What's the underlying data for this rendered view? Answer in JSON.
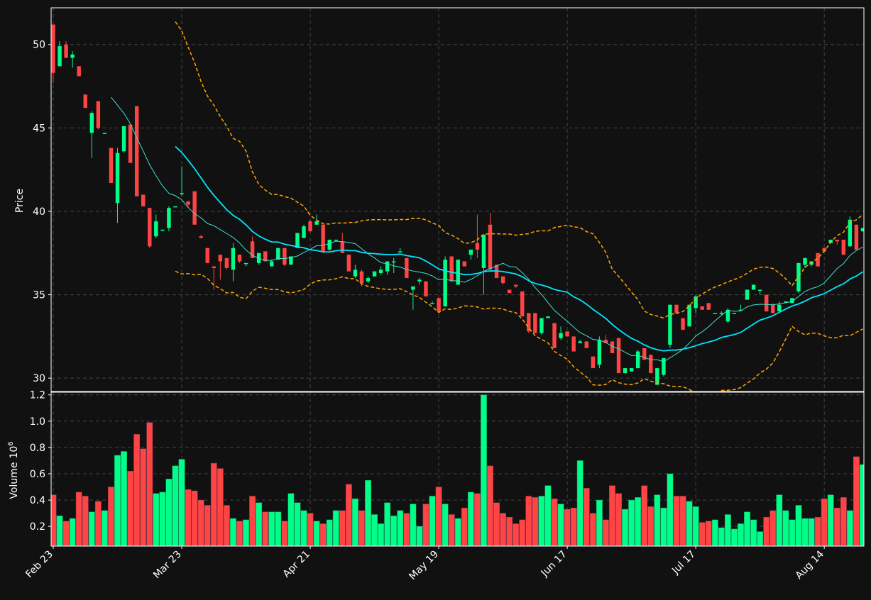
{
  "chart_data": {
    "type": "candlestick",
    "colors": {
      "background": "#111111",
      "up": "#00ff88",
      "down": "#ff4444",
      "ma_short": "#40e0d0",
      "ma_long": "#00e5ff",
      "bollinger": "#ffa500",
      "grid": "#444444",
      "axis": "#ffffff",
      "text": "#ffffff"
    },
    "price_panel": {
      "ylabel": "Price",
      "ylim": [
        29.2,
        52.2
      ],
      "yticks": [
        30,
        35,
        40,
        45,
        50
      ],
      "grid": true
    },
    "volume_panel": {
      "ylabel": "Volume",
      "ylabel_exponent": "10",
      "ylabel_exponent_power": "6",
      "ylim": [
        0.05,
        1.22
      ],
      "yticks": [
        0.2,
        0.4,
        0.6,
        0.8,
        1.0,
        1.2
      ],
      "ytick_labels": [
        "0.2",
        "0.4",
        "0.6",
        "0.8",
        "1.0",
        "1.2"
      ],
      "grid": true
    },
    "x_ticks": [
      {
        "index": 0,
        "label": "Feb 23"
      },
      {
        "index": 20,
        "label": "Mar 23"
      },
      {
        "index": 40,
        "label": "Apr 21"
      },
      {
        "index": 60,
        "label": "May 19"
      },
      {
        "index": 80,
        "label": "Jun 17"
      },
      {
        "index": 100,
        "label": "Jul 17"
      },
      {
        "index": 120,
        "label": "Aug 14"
      }
    ],
    "ohlcv": [
      [
        51.2,
        51.2,
        47.7,
        48.3,
        0.44
      ],
      [
        48.7,
        50.2,
        48.7,
        49.9,
        0.28
      ],
      [
        50,
        50.2,
        49.2,
        49.2,
        0.24
      ],
      [
        49.2,
        49.6,
        48.6,
        49.4,
        0.26
      ],
      [
        48.7,
        48.7,
        48.1,
        48.1,
        0.46
      ],
      [
        47,
        47,
        46.2,
        46.2,
        0.43
      ],
      [
        44.7,
        46,
        43.2,
        45.9,
        0.31
      ],
      [
        46.6,
        46.6,
        44.9,
        45,
        0.39
      ],
      [
        44.7,
        44.7,
        44.7,
        44.7,
        0.32
      ],
      [
        43.8,
        43.8,
        41.7,
        41.7,
        0.5
      ],
      [
        40.5,
        43.8,
        39.3,
        43.5,
        0.74
      ],
      [
        43.6,
        45.1,
        43.5,
        45.1,
        0.77
      ],
      [
        45.2,
        45.2,
        42.9,
        42.9,
        0.62
      ],
      [
        46.3,
        46.3,
        40.9,
        40.9,
        0.9
      ],
      [
        41,
        41,
        40.3,
        40.3,
        0.79
      ],
      [
        40.2,
        40.2,
        37.8,
        37.9,
        0.99
      ],
      [
        38.5,
        39.8,
        38.4,
        39.4,
        0.45
      ],
      [
        38.9,
        38.9,
        38.8,
        38.9,
        0.46
      ],
      [
        39,
        40.3,
        38.8,
        40.2,
        0.56
      ],
      [
        40.3,
        40.3,
        40.3,
        40.3,
        0.66
      ],
      [
        41.1,
        42.7,
        40.9,
        41.1,
        0.71
      ],
      [
        40.6,
        40.6,
        40.2,
        40.4,
        0.48
      ],
      [
        41.2,
        41.2,
        39.2,
        39.2,
        0.47
      ],
      [
        38.5,
        38.6,
        38.4,
        38.4,
        0.4
      ],
      [
        37.8,
        37.8,
        36.9,
        36.9,
        0.36
      ],
      [
        36.7,
        36.7,
        35.3,
        36.6,
        0.68
      ],
      [
        37.4,
        37.4,
        35.9,
        37,
        0.64
      ],
      [
        37.2,
        37.2,
        36.5,
        36.6,
        0.36
      ],
      [
        36.5,
        38.1,
        35.8,
        37.8,
        0.26
      ],
      [
        37.4,
        37.4,
        36.9,
        37,
        0.24
      ],
      [
        36.9,
        36.9,
        36.7,
        36.9,
        0.25
      ],
      [
        38.2,
        38.5,
        37.2,
        37.2,
        0.43
      ],
      [
        36.9,
        37.5,
        36.8,
        37.5,
        0.38
      ],
      [
        37.6,
        37.6,
        37,
        37,
        0.31
      ],
      [
        36.7,
        37.1,
        36.7,
        37,
        0.31
      ],
      [
        37.1,
        37.8,
        37.1,
        37.8,
        0.31
      ],
      [
        37.8,
        37.8,
        36.7,
        36.8,
        0.24
      ],
      [
        36.8,
        37.3,
        36.8,
        37.3,
        0.45
      ],
      [
        37.8,
        38.7,
        37.8,
        38.7,
        0.38
      ],
      [
        38.4,
        39.2,
        38.4,
        39.1,
        0.32
      ],
      [
        39.4,
        39.5,
        38.8,
        38.8,
        0.3
      ],
      [
        39.2,
        39.8,
        39.2,
        39.4,
        0.24
      ],
      [
        39.2,
        39.2,
        37.5,
        37.6,
        0.22
      ],
      [
        37.7,
        38.3,
        37.6,
        38.3,
        0.25
      ],
      [
        38.3,
        38.3,
        38.3,
        38.3,
        0.32
      ],
      [
        38.2,
        38.7,
        37.5,
        37.5,
        0.32
      ],
      [
        37.4,
        37.4,
        36.4,
        36.4,
        0.52
      ],
      [
        36.1,
        36.8,
        36,
        36.5,
        0.41
      ],
      [
        36.4,
        36.5,
        35.5,
        35.7,
        0.32
      ],
      [
        35.8,
        36.1,
        35.7,
        36,
        0.55
      ],
      [
        36.1,
        36.4,
        36.1,
        36.4,
        0.29
      ],
      [
        36.3,
        36.7,
        36.2,
        36.5,
        0.22
      ],
      [
        36.4,
        37,
        36.2,
        37,
        0.38
      ],
      [
        37,
        37.2,
        36.3,
        37,
        0.28
      ],
      [
        37.6,
        37.8,
        37.6,
        37.6,
        0.32
      ],
      [
        37.2,
        37.2,
        36,
        36,
        0.3
      ],
      [
        35.3,
        35.4,
        34.1,
        35.5,
        0.37
      ],
      [
        35.8,
        36,
        35.6,
        35.9,
        0.2
      ],
      [
        35.8,
        35.8,
        34.9,
        34.9,
        0.37
      ],
      [
        34.5,
        34.6,
        34.5,
        34.5,
        0.43
      ],
      [
        34.8,
        34.8,
        34,
        34,
        0.5
      ],
      [
        34.3,
        37.3,
        34.3,
        37.1,
        0.37
      ],
      [
        37.3,
        37.3,
        35.8,
        35.8,
        0.29
      ],
      [
        35.6,
        37.1,
        35.6,
        37.1,
        0.26
      ],
      [
        37,
        37,
        36.7,
        36.7,
        0.34
      ],
      [
        37.4,
        37.7,
        37.1,
        37.7,
        0.46
      ],
      [
        38.1,
        39.8,
        37.2,
        37.7,
        0.45
      ],
      [
        36.6,
        38.6,
        35,
        38.6,
        1.2
      ],
      [
        39.2,
        39.9,
        36.5,
        36.5,
        0.66
      ],
      [
        36.8,
        36.8,
        36,
        36,
        0.38
      ],
      [
        36.1,
        36.1,
        35.6,
        35.7,
        0.3
      ],
      [
        35.3,
        35.3,
        35.1,
        35.1,
        0.27
      ],
      [
        35.6,
        35.6,
        35.4,
        35.5,
        0.22
      ],
      [
        35.2,
        35.2,
        33.7,
        33.7,
        0.25
      ],
      [
        33.9,
        33.9,
        32.7,
        32.8,
        0.43
      ],
      [
        33.9,
        33.9,
        32.7,
        32.7,
        0.42
      ],
      [
        32.7,
        33.6,
        32.6,
        33.6,
        0.43
      ],
      [
        33.6,
        33.7,
        33.6,
        33.7,
        0.51
      ],
      [
        33.3,
        33.3,
        31.8,
        31.8,
        0.41
      ],
      [
        32.4,
        33.1,
        32.3,
        32.7,
        0.37
      ],
      [
        32.8,
        32.8,
        32.6,
        32.5,
        0.33
      ],
      [
        32.5,
        32.5,
        31.6,
        31.6,
        0.34
      ],
      [
        32.1,
        32.3,
        32.1,
        32.2,
        0.7
      ],
      [
        32.2,
        32.2,
        32.2,
        31.8,
        0.49
      ],
      [
        31.3,
        31.3,
        30.6,
        30.6,
        0.3
      ],
      [
        30.8,
        32.5,
        30.6,
        32.3,
        0.4
      ],
      [
        32.3,
        32.6,
        32.3,
        32.1,
        0.25
      ],
      [
        32.2,
        32.2,
        31.5,
        31.5,
        0.51
      ],
      [
        32.4,
        32.4,
        30.3,
        30.3,
        0.45
      ],
      [
        30.3,
        30.6,
        30.3,
        30.6,
        0.33
      ],
      [
        30.4,
        30.6,
        30.4,
        30.6,
        0.4
      ],
      [
        30.6,
        31.7,
        30.6,
        31.6,
        0.42
      ],
      [
        31.8,
        31.8,
        31.1,
        31.1,
        0.51
      ],
      [
        31.4,
        31.4,
        30.3,
        30.3,
        0.35
      ],
      [
        29.6,
        30.6,
        29.6,
        30.6,
        0.44
      ],
      [
        30.2,
        31.2,
        30.1,
        31.2,
        0.34
      ],
      [
        32,
        34.4,
        31.8,
        34.4,
        0.6
      ],
      [
        34.4,
        34.4,
        33.9,
        33.9,
        0.43
      ],
      [
        33.6,
        33.6,
        32.9,
        32.9,
        0.43
      ],
      [
        33.1,
        34.4,
        33.1,
        34.4,
        0.39
      ],
      [
        34.2,
        35,
        33.9,
        34.9,
        0.35
      ],
      [
        34.3,
        34.3,
        34.1,
        34.1,
        0.23
      ],
      [
        34.5,
        34.5,
        34.1,
        34.1,
        0.24
      ],
      [
        33.9,
        33.9,
        33.9,
        33.9,
        0.25
      ],
      [
        33.9,
        34,
        33.8,
        33.9,
        0.19
      ],
      [
        33.4,
        34.2,
        33.3,
        34.1,
        0.29
      ],
      [
        33.9,
        33.9,
        33.9,
        33.9,
        0.18
      ],
      [
        34.1,
        34.4,
        34.1,
        34.1,
        0.22
      ],
      [
        34.7,
        35.3,
        34.7,
        35.3,
        0.31
      ],
      [
        35.3,
        35.6,
        35.3,
        35.6,
        0.25
      ],
      [
        35.3,
        35.3,
        35,
        35.3,
        0.16
      ],
      [
        35,
        35,
        34,
        34,
        0.27
      ],
      [
        34.4,
        34.5,
        33.9,
        33.9,
        0.32
      ],
      [
        34,
        34.6,
        34,
        34.4,
        0.44
      ],
      [
        34.6,
        34.6,
        34.6,
        34.6,
        0.32
      ],
      [
        34.5,
        34.8,
        34.5,
        34.8,
        0.25
      ],
      [
        35.2,
        36.9,
        35.1,
        36.9,
        0.36
      ],
      [
        36.8,
        37.2,
        36.6,
        37.2,
        0.26
      ],
      [
        36.8,
        37,
        36.7,
        37,
        0.26
      ],
      [
        37.5,
        37.5,
        36.7,
        36.7,
        0.27
      ],
      [
        37.8,
        37.8,
        37.6,
        37.6,
        0.41
      ],
      [
        38.1,
        38.3,
        38.1,
        38.3,
        0.44
      ],
      [
        38.3,
        38.3,
        38,
        38.2,
        0.34
      ],
      [
        38.3,
        38.3,
        37.4,
        37.4,
        0.42
      ],
      [
        37.9,
        39.7,
        37.9,
        39.5,
        0.32
      ],
      [
        39.2,
        39.2,
        37.7,
        37.7,
        0.73
      ],
      [
        38.8,
        39,
        38.8,
        39,
        0.67
      ]
    ],
    "series": [
      {
        "type": "moving_average",
        "window": 10,
        "color": "#40e0d0"
      },
      {
        "type": "moving_average",
        "window": 20,
        "color": "#00e5ff"
      },
      {
        "type": "bollinger_band",
        "window": 20,
        "color": "#ffa500"
      }
    ]
  }
}
